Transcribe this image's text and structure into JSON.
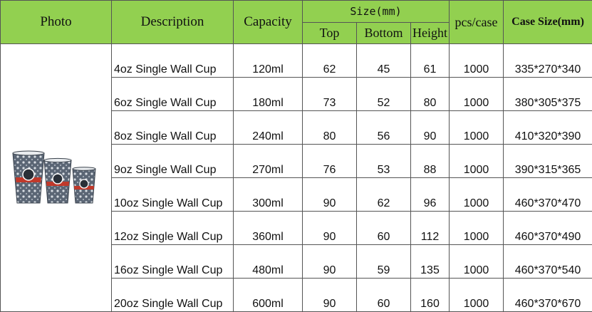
{
  "table": {
    "headers": {
      "photo": "Photo",
      "description": "Description",
      "capacity": "Capacity",
      "size": "Size(mm)",
      "top": "Top",
      "bottom": "Bottom",
      "height": "Height",
      "pcs_case": "pcs/case",
      "case_size": "Case Size(mm)"
    },
    "rows": [
      {
        "description": "4oz Single Wall Cup",
        "capacity": "120ml",
        "top": "62",
        "bottom": "45",
        "height": "61",
        "pcs": "1000",
        "case_size": "335*270*340"
      },
      {
        "description": "6oz Single Wall Cup",
        "capacity": "180ml",
        "top": "73",
        "bottom": "52",
        "height": "80",
        "pcs": "1000",
        "case_size": "380*305*375"
      },
      {
        "description": "8oz Single Wall Cup",
        "capacity": "240ml",
        "top": "80",
        "bottom": "56",
        "height": "90",
        "pcs": "1000",
        "case_size": "410*320*390"
      },
      {
        "description": "9oz Single Wall Cup",
        "capacity": "270ml",
        "top": "76",
        "bottom": "53",
        "height": "88",
        "pcs": "1000",
        "case_size": "390*315*365"
      },
      {
        "description": "10oz Single Wall Cup",
        "capacity": "300ml",
        "top": "90",
        "bottom": "62",
        "height": "96",
        "pcs": "1000",
        "case_size": "460*370*470"
      },
      {
        "description": "12oz Single Wall Cup",
        "capacity": "360ml",
        "top": "90",
        "bottom": "60",
        "height": "112",
        "pcs": "1000",
        "case_size": "460*370*490"
      },
      {
        "description": "16oz Single Wall Cup",
        "capacity": "480ml",
        "top": "90",
        "bottom": "59",
        "height": "135",
        "pcs": "1000",
        "case_size": "460*370*540"
      },
      {
        "description": "20oz Single Wall Cup",
        "capacity": "600ml",
        "top": "90",
        "bottom": "60",
        "height": "160",
        "pcs": "1000",
        "case_size": "460*370*670"
      }
    ]
  },
  "colors": {
    "header_bg": "#92d050",
    "cup_body": "#5b6675",
    "cup_band": "#c0392b"
  },
  "photo": {
    "icon": "paper-cups-image"
  }
}
